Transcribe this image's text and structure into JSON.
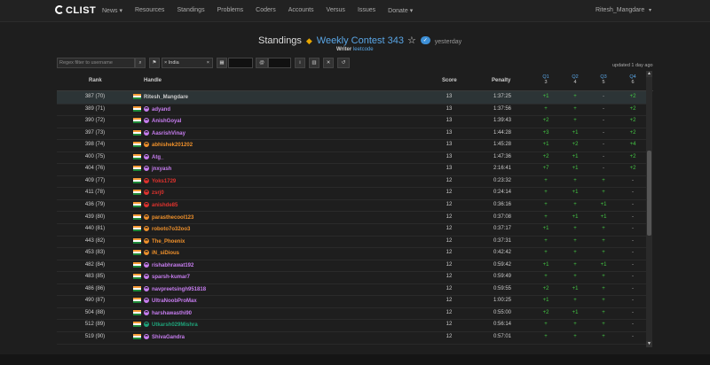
{
  "nav": {
    "brand": "CLIST",
    "items": [
      "News ▾",
      "Resources",
      "Standings",
      "Problems",
      "Coders",
      "Accounts",
      "Versus",
      "Issues",
      "Donate ▾"
    ],
    "user": "Ritesh_Mangdare",
    "user_caret": "▾"
  },
  "header": {
    "title": "Standings",
    "contest": "Weekly Contest 343",
    "badge": "✓",
    "when": "yesterday",
    "writer_label": "Writer",
    "writer": "leetcode"
  },
  "filters": {
    "search_placeholder": "Regex filter to username",
    "country": "× India",
    "country_clear": "×",
    "at": "@"
  },
  "updated": "updated 1 day ago",
  "table": {
    "headers": {
      "rank": "Rank",
      "handle": "Handle",
      "score": "Score",
      "penalty": "Penalty"
    },
    "problems": [
      {
        "label": "Q1",
        "score": "3"
      },
      {
        "label": "Q2",
        "score": "4"
      },
      {
        "label": "Q3",
        "score": "5"
      },
      {
        "label": "Q4",
        "score": "6"
      }
    ],
    "rows": [
      {
        "rank": "387 (70)",
        "handle": "Ritesh_Mangdare",
        "color": "#cccccc",
        "avatar": "",
        "score": "13",
        "penalty": "1:37:25",
        "q": [
          "+1",
          "+",
          "-",
          "+2"
        ],
        "hl": true
      },
      {
        "rank": "389 (71)",
        "handle": "adyand",
        "color": "#c77df0",
        "avatar": "#c77df0",
        "score": "13",
        "penalty": "1:37:56",
        "q": [
          "+",
          "+",
          "-",
          "+2"
        ]
      },
      {
        "rank": "390 (72)",
        "handle": "AnishGoyal",
        "color": "#c77df0",
        "avatar": "#c77df0",
        "score": "13",
        "penalty": "1:39:43",
        "q": [
          "+2",
          "+",
          "-",
          "+2"
        ]
      },
      {
        "rank": "397 (73)",
        "handle": "AasrishVinay",
        "color": "#c77df0",
        "avatar": "#c77df0",
        "score": "13",
        "penalty": "1:44:28",
        "q": [
          "+3",
          "+1",
          "-",
          "+2"
        ]
      },
      {
        "rank": "398 (74)",
        "handle": "abhishek201202",
        "color": "#f0912b",
        "avatar": "#f0912b",
        "score": "13",
        "penalty": "1:45:28",
        "q": [
          "+1",
          "+2",
          "-",
          "+4"
        ]
      },
      {
        "rank": "400 (75)",
        "handle": "Atg_",
        "color": "#c77df0",
        "avatar": "#c77df0",
        "score": "13",
        "penalty": "1:47:36",
        "q": [
          "+2",
          "+1",
          "-",
          "+2"
        ]
      },
      {
        "rank": "404 (76)",
        "handle": "jnxyash",
        "color": "#c77df0",
        "avatar": "#c77df0",
        "score": "13",
        "penalty": "2:16:41",
        "q": [
          "+7",
          "+1",
          "-",
          "+2"
        ]
      },
      {
        "rank": "409 (77)",
        "handle": "Yoks1729",
        "color": "#e0332e",
        "avatar": "#e0332e",
        "score": "12",
        "penalty": "0:23:32",
        "q": [
          "+",
          "+",
          "+",
          "-"
        ]
      },
      {
        "rank": "411 (78)",
        "handle": "zsrj0",
        "color": "#e0332e",
        "avatar": "#e0332e",
        "score": "12",
        "penalty": "0:24:14",
        "q": [
          "+",
          "+1",
          "+",
          "-"
        ]
      },
      {
        "rank": "436 (79)",
        "handle": "anishde85",
        "color": "#e0332e",
        "avatar": "#e0332e",
        "score": "12",
        "penalty": "0:36:16",
        "q": [
          "+",
          "+",
          "+1",
          "-"
        ]
      },
      {
        "rank": "439 (80)",
        "handle": "parasthecool123",
        "color": "#f0912b",
        "avatar": "#f0912b",
        "score": "12",
        "penalty": "0:37:08",
        "q": [
          "+",
          "+1",
          "+1",
          "-"
        ]
      },
      {
        "rank": "440 (81)",
        "handle": "roboto7o32oo3",
        "color": "#f0912b",
        "avatar": "#f0912b",
        "score": "12",
        "penalty": "0:37:17",
        "q": [
          "+1",
          "+",
          "+",
          "-"
        ]
      },
      {
        "rank": "443 (82)",
        "handle": "The_Phoenix",
        "color": "#f0912b",
        "avatar": "#f0912b",
        "score": "12",
        "penalty": "0:37:31",
        "q": [
          "+",
          "+",
          "+",
          "-"
        ]
      },
      {
        "rank": "453 (83)",
        "handle": "iN_siDious",
        "color": "#f0912b",
        "avatar": "#f0912b",
        "score": "12",
        "penalty": "0:42:42",
        "q": [
          "+",
          "+",
          "+",
          "-"
        ]
      },
      {
        "rank": "482 (84)",
        "handle": "rishabhrawat192",
        "color": "#c77df0",
        "avatar": "#c77df0",
        "score": "12",
        "penalty": "0:59:42",
        "q": [
          "+1",
          "+",
          "+1",
          "-"
        ]
      },
      {
        "rank": "483 (85)",
        "handle": "sparsh-kumar7",
        "color": "#c77df0",
        "avatar": "#c77df0",
        "score": "12",
        "penalty": "0:59:49",
        "q": [
          "+",
          "+",
          "+",
          "-"
        ]
      },
      {
        "rank": "486 (86)",
        "handle": "navpreetsingh951818",
        "color": "#c77df0",
        "avatar": "#c77df0",
        "score": "12",
        "penalty": "0:59:55",
        "q": [
          "+2",
          "+1",
          "+",
          "-"
        ]
      },
      {
        "rank": "490 (87)",
        "handle": "UltraNoobProMax",
        "color": "#c77df0",
        "avatar": "#c77df0",
        "score": "12",
        "penalty": "1:00:25",
        "q": [
          "+1",
          "+",
          "+",
          "-"
        ]
      },
      {
        "rank": "504 (88)",
        "handle": "harshawasthi90",
        "color": "#c77df0",
        "avatar": "#c77df0",
        "score": "12",
        "penalty": "0:55:00",
        "q": [
          "+2",
          "+1",
          "+",
          "-"
        ]
      },
      {
        "rank": "512 (89)",
        "handle": "Utkarsh029Mishra",
        "color": "#1fa37a",
        "avatar": "#1fa37a",
        "score": "12",
        "penalty": "0:56:14",
        "q": [
          "+",
          "+",
          "+",
          "-"
        ]
      },
      {
        "rank": "519 (90)",
        "handle": "ShivaGandra",
        "color": "#c77df0",
        "avatar": "#c77df0",
        "score": "12",
        "penalty": "0:57:01",
        "q": [
          "+",
          "+",
          "+",
          "-"
        ]
      }
    ]
  }
}
